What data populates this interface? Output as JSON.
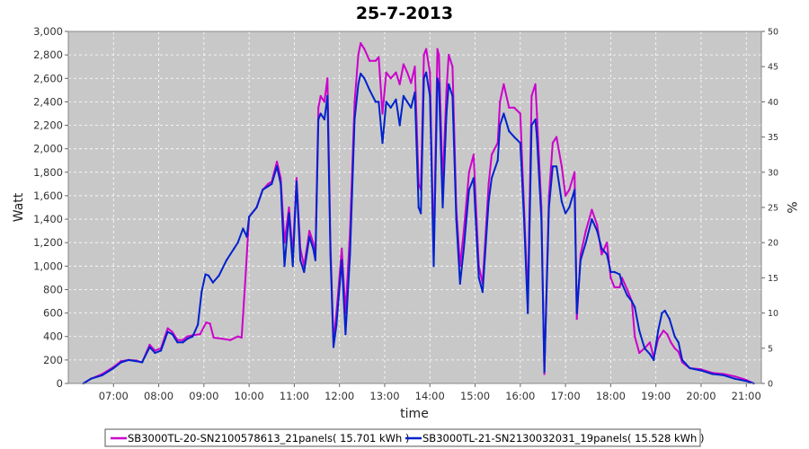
{
  "chart_data": {
    "type": "line",
    "title": "25-7-2013",
    "xlabel": "time",
    "ylabel": "Watt",
    "y2label": "%",
    "xlim": [
      "06:00",
      "21:20"
    ],
    "ylim": [
      0,
      3000
    ],
    "y2lim": [
      0,
      50
    ],
    "x_ticks": [
      "07:00",
      "08:00",
      "09:00",
      "10:00",
      "11:00",
      "12:00",
      "13:00",
      "14:00",
      "15:00",
      "16:00",
      "17:00",
      "18:00",
      "19:00",
      "20:00",
      "21:00"
    ],
    "y_ticks": [
      "0",
      "200",
      "400",
      "600",
      "800",
      "1,000",
      "1,200",
      "1,400",
      "1,600",
      "1,800",
      "2,000",
      "2,200",
      "2,400",
      "2,600",
      "2,800",
      "3,000"
    ],
    "y2_ticks": [
      "0",
      "5",
      "10",
      "15",
      "20",
      "25",
      "30",
      "35",
      "40",
      "45",
      "50"
    ],
    "grid": true,
    "legend_position": "bottom",
    "colors": {
      "plot_bg": "#c8c8c8",
      "grid": "#ffffff"
    },
    "series": [
      {
        "name": "SB3000TL-20-SN2100578613_21panels( 15.701 kWh )",
        "color": "#cc00cc",
        "points": [
          [
            "06:20",
            0
          ],
          [
            "06:30",
            40
          ],
          [
            "06:45",
            80
          ],
          [
            "07:00",
            140
          ],
          [
            "07:10",
            190
          ],
          [
            "07:20",
            200
          ],
          [
            "07:30",
            195
          ],
          [
            "07:38",
            180
          ],
          [
            "07:48",
            330
          ],
          [
            "07:55",
            280
          ],
          [
            "08:03",
            300
          ],
          [
            "08:12",
            470
          ],
          [
            "08:18",
            440
          ],
          [
            "08:25",
            370
          ],
          [
            "08:32",
            370
          ],
          [
            "08:38",
            400
          ],
          [
            "08:45",
            410
          ],
          [
            "08:55",
            420
          ],
          [
            "09:03",
            520
          ],
          [
            "09:08",
            510
          ],
          [
            "09:13",
            390
          ],
          [
            "09:25",
            380
          ],
          [
            "09:35",
            370
          ],
          [
            "09:45",
            400
          ],
          [
            "09:50",
            390
          ],
          [
            "09:55",
            880
          ],
          [
            "10:00",
            1420
          ],
          [
            "10:10",
            1500
          ],
          [
            "10:18",
            1650
          ],
          [
            "10:25",
            1700
          ],
          [
            "10:30",
            1720
          ],
          [
            "10:37",
            1890
          ],
          [
            "10:42",
            1750
          ],
          [
            "10:47",
            1200
          ],
          [
            "10:53",
            1500
          ],
          [
            "10:58",
            1100
          ],
          [
            "11:03",
            1750
          ],
          [
            "11:08",
            1150
          ],
          [
            "11:13",
            1000
          ],
          [
            "11:20",
            1300
          ],
          [
            "11:25",
            1200
          ],
          [
            "11:28",
            1100
          ],
          [
            "11:32",
            2350
          ],
          [
            "11:35",
            2450
          ],
          [
            "11:40",
            2400
          ],
          [
            "11:44",
            2600
          ],
          [
            "11:48",
            1200
          ],
          [
            "11:52",
            360
          ],
          [
            "11:56",
            600
          ],
          [
            "12:03",
            1150
          ],
          [
            "12:08",
            600
          ],
          [
            "12:14",
            1300
          ],
          [
            "12:20",
            2400
          ],
          [
            "12:25",
            2800
          ],
          [
            "12:28",
            2900
          ],
          [
            "12:33",
            2850
          ],
          [
            "12:40",
            2750
          ],
          [
            "12:48",
            2750
          ],
          [
            "12:52",
            2780
          ],
          [
            "12:57",
            2300
          ],
          [
            "13:02",
            2650
          ],
          [
            "13:08",
            2600
          ],
          [
            "13:15",
            2650
          ],
          [
            "13:20",
            2550
          ],
          [
            "13:25",
            2720
          ],
          [
            "13:30",
            2650
          ],
          [
            "13:35",
            2560
          ],
          [
            "13:40",
            2700
          ],
          [
            "13:45",
            1700
          ],
          [
            "13:48",
            1650
          ],
          [
            "13:52",
            2800
          ],
          [
            "13:55",
            2850
          ],
          [
            "14:00",
            2650
          ],
          [
            "14:05",
            1100
          ],
          [
            "14:10",
            2850
          ],
          [
            "14:12",
            2800
          ],
          [
            "14:17",
            1700
          ],
          [
            "14:22",
            2500
          ],
          [
            "14:25",
            2800
          ],
          [
            "14:30",
            2700
          ],
          [
            "14:35",
            1500
          ],
          [
            "14:40",
            1000
          ],
          [
            "14:45",
            1300
          ],
          [
            "14:52",
            1800
          ],
          [
            "14:58",
            1950
          ],
          [
            "15:02",
            1400
          ],
          [
            "15:05",
            1000
          ],
          [
            "15:10",
            850
          ],
          [
            "15:18",
            1700
          ],
          [
            "15:22",
            1950
          ],
          [
            "15:30",
            2050
          ],
          [
            "15:33",
            2400
          ],
          [
            "15:38",
            2550
          ],
          [
            "15:45",
            2350
          ],
          [
            "15:52",
            2350
          ],
          [
            "16:00",
            2300
          ],
          [
            "16:05",
            1500
          ],
          [
            "16:10",
            700
          ],
          [
            "16:15",
            2450
          ],
          [
            "16:20",
            2550
          ],
          [
            "16:22",
            2300
          ],
          [
            "16:28",
            1500
          ],
          [
            "16:32",
            80
          ],
          [
            "16:38",
            1600
          ],
          [
            "16:43",
            2050
          ],
          [
            "16:48",
            2100
          ],
          [
            "16:55",
            1850
          ],
          [
            "17:00",
            1600
          ],
          [
            "17:05",
            1650
          ],
          [
            "17:12",
            1800
          ],
          [
            "17:15",
            550
          ],
          [
            "17:20",
            1100
          ],
          [
            "17:27",
            1300
          ],
          [
            "17:35",
            1480
          ],
          [
            "17:42",
            1350
          ],
          [
            "17:48",
            1100
          ],
          [
            "17:55",
            1200
          ],
          [
            "18:00",
            900
          ],
          [
            "18:05",
            820
          ],
          [
            "18:12",
            820
          ],
          [
            "18:15",
            900
          ],
          [
            "18:22",
            800
          ],
          [
            "18:28",
            700
          ],
          [
            "18:32",
            400
          ],
          [
            "18:38",
            260
          ],
          [
            "18:45",
            300
          ],
          [
            "18:52",
            350
          ],
          [
            "18:57",
            220
          ],
          [
            "19:03",
            380
          ],
          [
            "19:10",
            450
          ],
          [
            "19:15",
            420
          ],
          [
            "19:20",
            350
          ],
          [
            "19:25",
            300
          ],
          [
            "19:30",
            270
          ],
          [
            "19:35",
            180
          ],
          [
            "19:45",
            130
          ],
          [
            "20:00",
            120
          ],
          [
            "20:15",
            90
          ],
          [
            "20:30",
            80
          ],
          [
            "20:45",
            60
          ],
          [
            "21:00",
            30
          ],
          [
            "21:10",
            0
          ]
        ]
      },
      {
        "name": "SB3000TL-21-SN2130032031_19panels( 15.528 kWh )",
        "color": "#0022cc",
        "points": [
          [
            "06:20",
            0
          ],
          [
            "06:30",
            40
          ],
          [
            "06:45",
            70
          ],
          [
            "07:00",
            130
          ],
          [
            "07:10",
            180
          ],
          [
            "07:20",
            200
          ],
          [
            "07:30",
            190
          ],
          [
            "07:38",
            180
          ],
          [
            "07:48",
            310
          ],
          [
            "07:55",
            260
          ],
          [
            "08:03",
            280
          ],
          [
            "08:12",
            440
          ],
          [
            "08:18",
            420
          ],
          [
            "08:25",
            350
          ],
          [
            "08:32",
            350
          ],
          [
            "08:38",
            380
          ],
          [
            "08:45",
            400
          ],
          [
            "08:52",
            500
          ],
          [
            "08:57",
            780
          ],
          [
            "09:02",
            930
          ],
          [
            "09:06",
            920
          ],
          [
            "09:12",
            860
          ],
          [
            "09:20",
            920
          ],
          [
            "09:30",
            1050
          ],
          [
            "09:40",
            1150
          ],
          [
            "09:45",
            1200
          ],
          [
            "09:52",
            1320
          ],
          [
            "09:57",
            1250
          ],
          [
            "10:00",
            1420
          ],
          [
            "10:10",
            1500
          ],
          [
            "10:18",
            1650
          ],
          [
            "10:25",
            1680
          ],
          [
            "10:30",
            1700
          ],
          [
            "10:37",
            1850
          ],
          [
            "10:42",
            1700
          ],
          [
            "10:47",
            1000
          ],
          [
            "10:53",
            1450
          ],
          [
            "10:58",
            1000
          ],
          [
            "11:03",
            1720
          ],
          [
            "11:08",
            1050
          ],
          [
            "11:13",
            950
          ],
          [
            "11:20",
            1250
          ],
          [
            "11:25",
            1150
          ],
          [
            "11:28",
            1050
          ],
          [
            "11:32",
            2250
          ],
          [
            "11:35",
            2300
          ],
          [
            "11:40",
            2250
          ],
          [
            "11:44",
            2450
          ],
          [
            "11:48",
            1100
          ],
          [
            "11:52",
            310
          ],
          [
            "11:56",
            500
          ],
          [
            "12:03",
            1050
          ],
          [
            "12:08",
            420
          ],
          [
            "12:14",
            1100
          ],
          [
            "12:20",
            2250
          ],
          [
            "12:25",
            2550
          ],
          [
            "12:28",
            2640
          ],
          [
            "12:33",
            2600
          ],
          [
            "12:40",
            2500
          ],
          [
            "12:48",
            2400
          ],
          [
            "12:52",
            2400
          ],
          [
            "12:57",
            2050
          ],
          [
            "13:02",
            2400
          ],
          [
            "13:08",
            2350
          ],
          [
            "13:15",
            2420
          ],
          [
            "13:20",
            2200
          ],
          [
            "13:25",
            2450
          ],
          [
            "13:30",
            2400
          ],
          [
            "13:35",
            2350
          ],
          [
            "13:40",
            2480
          ],
          [
            "13:45",
            1500
          ],
          [
            "13:48",
            1450
          ],
          [
            "13:52",
            2600
          ],
          [
            "13:55",
            2650
          ],
          [
            "14:00",
            2450
          ],
          [
            "14:05",
            1000
          ],
          [
            "14:10",
            2600
          ],
          [
            "14:12",
            2550
          ],
          [
            "14:17",
            1500
          ],
          [
            "14:22",
            2300
          ],
          [
            "14:25",
            2550
          ],
          [
            "14:30",
            2450
          ],
          [
            "14:35",
            1400
          ],
          [
            "14:40",
            850
          ],
          [
            "14:45",
            1150
          ],
          [
            "14:52",
            1650
          ],
          [
            "14:58",
            1750
          ],
          [
            "15:02",
            1250
          ],
          [
            "15:05",
            900
          ],
          [
            "15:10",
            780
          ],
          [
            "15:18",
            1550
          ],
          [
            "15:22",
            1750
          ],
          [
            "15:30",
            1900
          ],
          [
            "15:33",
            2200
          ],
          [
            "15:38",
            2300
          ],
          [
            "15:45",
            2150
          ],
          [
            "15:52",
            2100
          ],
          [
            "16:00",
            2050
          ],
          [
            "16:05",
            1400
          ],
          [
            "16:10",
            600
          ],
          [
            "16:15",
            2200
          ],
          [
            "16:20",
            2250
          ],
          [
            "16:22",
            2100
          ],
          [
            "16:28",
            1400
          ],
          [
            "16:32",
            100
          ],
          [
            "16:38",
            1500
          ],
          [
            "16:43",
            1850
          ],
          [
            "16:48",
            1850
          ],
          [
            "16:55",
            1550
          ],
          [
            "17:00",
            1450
          ],
          [
            "17:05",
            1500
          ],
          [
            "17:12",
            1650
          ],
          [
            "17:15",
            600
          ],
          [
            "17:20",
            1050
          ],
          [
            "17:27",
            1200
          ],
          [
            "17:35",
            1400
          ],
          [
            "17:42",
            1300
          ],
          [
            "17:48",
            1150
          ],
          [
            "17:55",
            1100
          ],
          [
            "18:00",
            950
          ],
          [
            "18:05",
            950
          ],
          [
            "18:12",
            930
          ],
          [
            "18:15",
            850
          ],
          [
            "18:22",
            750
          ],
          [
            "18:28",
            700
          ],
          [
            "18:32",
            650
          ],
          [
            "18:38",
            450
          ],
          [
            "18:45",
            300
          ],
          [
            "18:52",
            250
          ],
          [
            "18:57",
            200
          ],
          [
            "19:03",
            450
          ],
          [
            "19:08",
            600
          ],
          [
            "19:12",
            620
          ],
          [
            "19:18",
            550
          ],
          [
            "19:25",
            400
          ],
          [
            "19:30",
            350
          ],
          [
            "19:35",
            200
          ],
          [
            "19:45",
            130
          ],
          [
            "20:00",
            110
          ],
          [
            "20:15",
            80
          ],
          [
            "20:30",
            70
          ],
          [
            "20:45",
            40
          ],
          [
            "21:00",
            20
          ],
          [
            "21:10",
            0
          ]
        ]
      }
    ]
  }
}
